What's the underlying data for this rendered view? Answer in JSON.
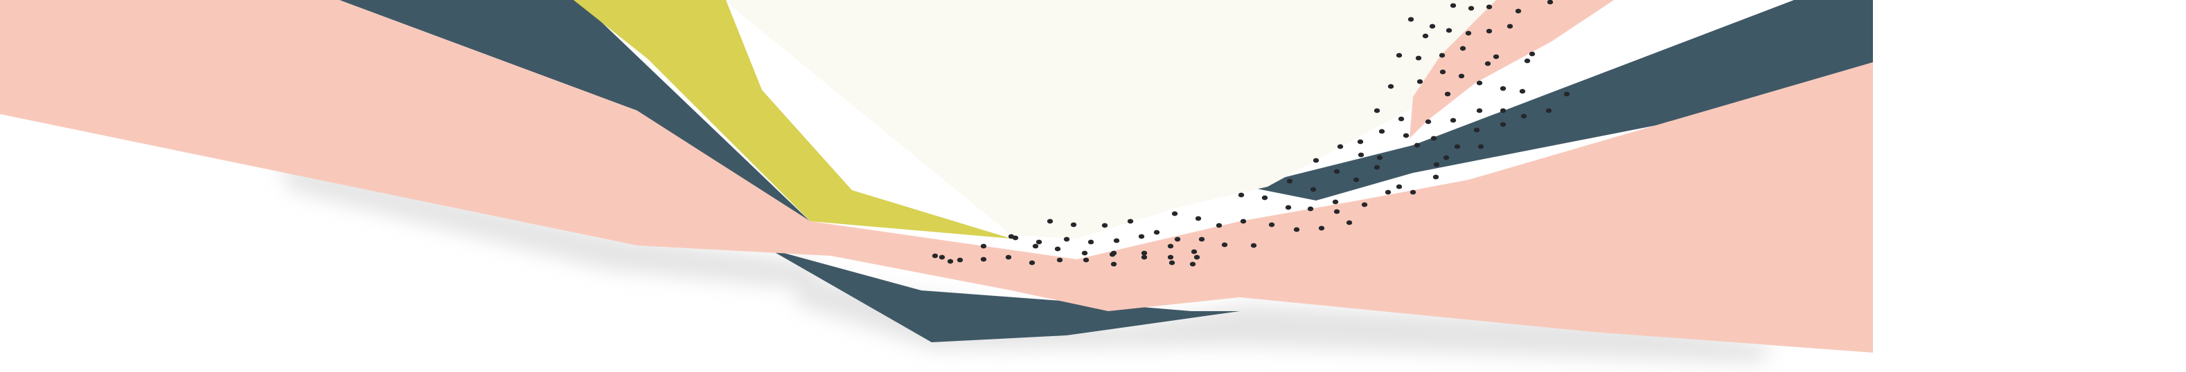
{
  "artwork": {
    "subject": "abstract-geometric-banner",
    "palette": {
      "background": "#ffffff",
      "peach": "#f8c9bb",
      "slate": "#3f5866",
      "mustard": "#d8d152",
      "cream": "#faf9f2",
      "dot": "#25272a",
      "shadow": "#cfcfcf"
    },
    "dot_pattern": "scattered-dark-dots"
  }
}
